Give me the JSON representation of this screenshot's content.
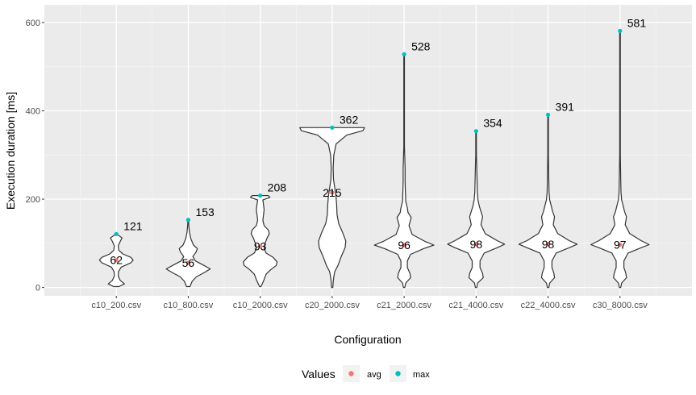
{
  "chart_data": {
    "type": "violin",
    "title": "",
    "xlabel": "Configuration",
    "ylabel": "Execution duration [ms]",
    "ylim": [
      -19,
      640
    ],
    "yticks": [
      0,
      200,
      400,
      600
    ],
    "grid": true,
    "legend_position": "bottom",
    "legend_title": "Values",
    "categories": [
      "c10_200.csv",
      "c10_800.csv",
      "c10_2000.csv",
      "c20_2000.csv",
      "c21_2000.csv",
      "c21_4000.csv",
      "c22_4000.csv",
      "c30_8000.csv"
    ],
    "series": [
      {
        "name": "avg",
        "color": "#F8766D",
        "values": [
          62,
          56,
          93,
          215,
          96,
          98,
          98,
          97
        ]
      },
      {
        "name": "max",
        "color": "#00BFC4",
        "values": [
          121,
          153,
          208,
          362,
          528,
          354,
          391,
          581
        ]
      }
    ],
    "avg_labels": [
      "62",
      "56",
      "93",
      "215",
      "96",
      "98",
      "98",
      "97"
    ],
    "max_labels": [
      "121",
      "153",
      "208",
      "362",
      "528",
      "354",
      "391",
      "581"
    ],
    "violins": [
      {
        "category": "c10_200.csv",
        "profile": [
          [
            2,
            0.08
          ],
          [
            8,
            0.25
          ],
          [
            16,
            0.12
          ],
          [
            26,
            0.06
          ],
          [
            36,
            0.07
          ],
          [
            46,
            0.15
          ],
          [
            56,
            0.45
          ],
          [
            62,
            0.52
          ],
          [
            68,
            0.45
          ],
          [
            76,
            0.2
          ],
          [
            84,
            0.08
          ],
          [
            94,
            0.06
          ],
          [
            104,
            0.12
          ],
          [
            112,
            0.18
          ],
          [
            118,
            0.07
          ],
          [
            121,
            0.02
          ]
        ]
      },
      {
        "category": "c10_800.csv",
        "profile": [
          [
            2,
            0.05
          ],
          [
            14,
            0.12
          ],
          [
            24,
            0.25
          ],
          [
            34,
            0.5
          ],
          [
            42,
            0.68
          ],
          [
            50,
            0.48
          ],
          [
            60,
            0.22
          ],
          [
            70,
            0.14
          ],
          [
            80,
            0.24
          ],
          [
            88,
            0.28
          ],
          [
            96,
            0.16
          ],
          [
            110,
            0.08
          ],
          [
            124,
            0.04
          ],
          [
            138,
            0.02
          ],
          [
            153,
            0.01
          ]
        ]
      },
      {
        "category": "c10_2000.csv",
        "profile": [
          [
            2,
            0.02
          ],
          [
            8,
            0.06
          ],
          [
            18,
            0.12
          ],
          [
            30,
            0.18
          ],
          [
            40,
            0.32
          ],
          [
            50,
            0.5
          ],
          [
            58,
            0.52
          ],
          [
            68,
            0.4
          ],
          [
            78,
            0.18
          ],
          [
            88,
            0.12
          ],
          [
            98,
            0.14
          ],
          [
            110,
            0.2
          ],
          [
            122,
            0.28
          ],
          [
            130,
            0.25
          ],
          [
            140,
            0.12
          ],
          [
            152,
            0.08
          ],
          [
            164,
            0.1
          ],
          [
            176,
            0.12
          ],
          [
            188,
            0.1
          ],
          [
            198,
            0.08
          ],
          [
            204,
            0.3
          ],
          [
            208,
            0.25
          ]
        ]
      },
      {
        "category": "c20_2000.csv",
        "profile": [
          [
            0,
            0.02
          ],
          [
            12,
            0.03
          ],
          [
            24,
            0.05
          ],
          [
            36,
            0.08
          ],
          [
            50,
            0.18
          ],
          [
            70,
            0.28
          ],
          [
            90,
            0.4
          ],
          [
            105,
            0.42
          ],
          [
            125,
            0.32
          ],
          [
            145,
            0.2
          ],
          [
            165,
            0.15
          ],
          [
            185,
            0.14
          ],
          [
            205,
            0.12
          ],
          [
            225,
            0.08
          ],
          [
            245,
            0.04
          ],
          [
            270,
            0.03
          ],
          [
            300,
            0.05
          ],
          [
            325,
            0.12
          ],
          [
            345,
            0.45
          ],
          [
            355,
            0.95
          ],
          [
            362,
            1.0
          ]
        ]
      },
      {
        "category": "c21_2000.csv",
        "profile": [
          [
            0,
            0.02
          ],
          [
            10,
            0.05
          ],
          [
            22,
            0.2
          ],
          [
            32,
            0.18
          ],
          [
            45,
            0.1
          ],
          [
            60,
            0.1
          ],
          [
            75,
            0.2
          ],
          [
            88,
            0.6
          ],
          [
            96,
            0.92
          ],
          [
            104,
            0.65
          ],
          [
            120,
            0.25
          ],
          [
            140,
            0.15
          ],
          [
            158,
            0.22
          ],
          [
            170,
            0.12
          ],
          [
            180,
            0.1
          ],
          [
            195,
            0.05
          ],
          [
            215,
            0.04
          ],
          [
            240,
            0.03
          ],
          [
            270,
            0.03
          ],
          [
            320,
            0.01
          ],
          [
            528,
            0.01
          ]
        ]
      },
      {
        "category": "c21_4000.csv",
        "profile": [
          [
            0,
            0.02
          ],
          [
            10,
            0.05
          ],
          [
            22,
            0.22
          ],
          [
            32,
            0.2
          ],
          [
            45,
            0.12
          ],
          [
            60,
            0.12
          ],
          [
            78,
            0.25
          ],
          [
            90,
            0.65
          ],
          [
            98,
            0.88
          ],
          [
            106,
            0.65
          ],
          [
            122,
            0.28
          ],
          [
            142,
            0.15
          ],
          [
            160,
            0.2
          ],
          [
            172,
            0.15
          ],
          [
            184,
            0.1
          ],
          [
            198,
            0.06
          ],
          [
            215,
            0.04
          ],
          [
            245,
            0.03
          ],
          [
            275,
            0.02
          ],
          [
            300,
            0.01
          ],
          [
            354,
            0.01
          ]
        ]
      },
      {
        "category": "c22_4000.csv",
        "profile": [
          [
            0,
            0.02
          ],
          [
            10,
            0.05
          ],
          [
            22,
            0.2
          ],
          [
            32,
            0.18
          ],
          [
            45,
            0.12
          ],
          [
            60,
            0.12
          ],
          [
            78,
            0.25
          ],
          [
            90,
            0.65
          ],
          [
            98,
            0.9
          ],
          [
            106,
            0.65
          ],
          [
            122,
            0.3
          ],
          [
            142,
            0.16
          ],
          [
            160,
            0.2
          ],
          [
            172,
            0.14
          ],
          [
            184,
            0.1
          ],
          [
            198,
            0.05
          ],
          [
            215,
            0.03
          ],
          [
            250,
            0.02
          ],
          [
            300,
            0.01
          ],
          [
            391,
            0.01
          ]
        ]
      },
      {
        "category": "c30_8000.csv",
        "profile": [
          [
            0,
            0.02
          ],
          [
            10,
            0.05
          ],
          [
            22,
            0.2
          ],
          [
            32,
            0.18
          ],
          [
            45,
            0.12
          ],
          [
            60,
            0.12
          ],
          [
            78,
            0.25
          ],
          [
            90,
            0.65
          ],
          [
            97,
            0.9
          ],
          [
            106,
            0.65
          ],
          [
            122,
            0.3
          ],
          [
            142,
            0.16
          ],
          [
            160,
            0.2
          ],
          [
            172,
            0.14
          ],
          [
            184,
            0.1
          ],
          [
            198,
            0.05
          ],
          [
            215,
            0.03
          ],
          [
            250,
            0.02
          ],
          [
            300,
            0.01
          ],
          [
            581,
            0.01
          ]
        ]
      }
    ]
  }
}
